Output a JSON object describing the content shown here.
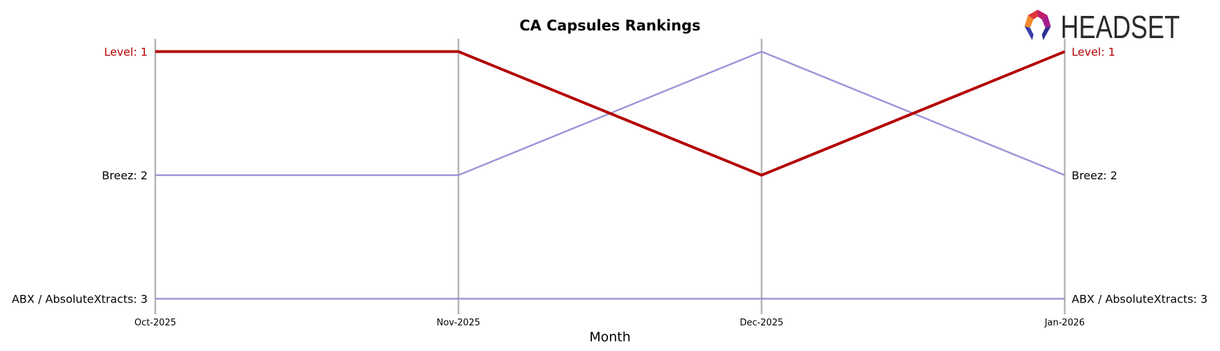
{
  "chart_data": {
    "type": "line",
    "title": "CA Capsules Rankings",
    "xlabel": "Month",
    "ylabel": "",
    "x": [
      "Oct-2025",
      "Nov-2025",
      "Dec-2025",
      "Jan-2026"
    ],
    "ylim": [
      3,
      1
    ],
    "y_inverted": true,
    "grid": "vertical lines at each month",
    "series": [
      {
        "name": "Level",
        "values": [
          1,
          1,
          2,
          1
        ],
        "color": "#b30000",
        "highlight": true
      },
      {
        "name": "Breez",
        "values": [
          2,
          2,
          1,
          2
        ],
        "color": "#9b95d8",
        "highlight": false
      },
      {
        "name": "ABX / AbsoluteXtracts",
        "values": [
          3,
          3,
          3,
          3
        ],
        "color": "#9b95d8",
        "highlight": false
      }
    ],
    "left_labels": [
      "Level: 1",
      "Breez: 2",
      "ABX / AbsoluteXtracts: 3"
    ],
    "right_labels": [
      "Level: 1",
      "Breez: 2",
      "ABX / AbsoluteXtracts: 3"
    ]
  },
  "logo": {
    "text": "HEADSET",
    "icon": "headset-logo-icon"
  }
}
